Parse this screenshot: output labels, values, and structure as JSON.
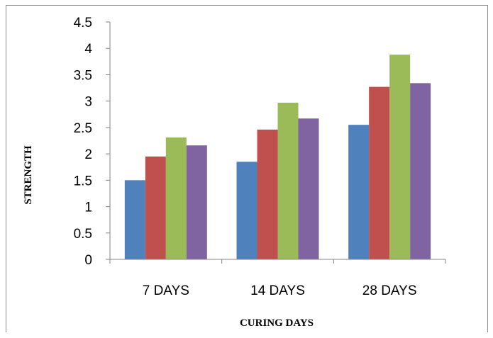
{
  "chart_data": {
    "type": "bar",
    "title": "",
    "xlabel": "CURING DAYS",
    "ylabel": "STRENGTH",
    "categories": [
      "7 DAYS",
      "14 DAYS",
      "28 DAYS"
    ],
    "series": [
      {
        "values": [
          1.5,
          1.85,
          2.55
        ],
        "color": "#4f81bd"
      },
      {
        "values": [
          1.95,
          2.46,
          3.27
        ],
        "color": "#c0504d"
      },
      {
        "values": [
          2.31,
          2.97,
          3.88
        ],
        "color": "#9bbb59"
      },
      {
        "values": [
          2.16,
          2.67,
          3.34
        ],
        "color": "#8064a2"
      }
    ],
    "ylim": [
      0,
      4.5
    ],
    "yticks": [
      "0",
      "0.5",
      "1",
      "1.5",
      "2",
      "2.5",
      "3",
      "3.5",
      "4",
      "4.5"
    ],
    "grid": false,
    "legend": "none"
  }
}
